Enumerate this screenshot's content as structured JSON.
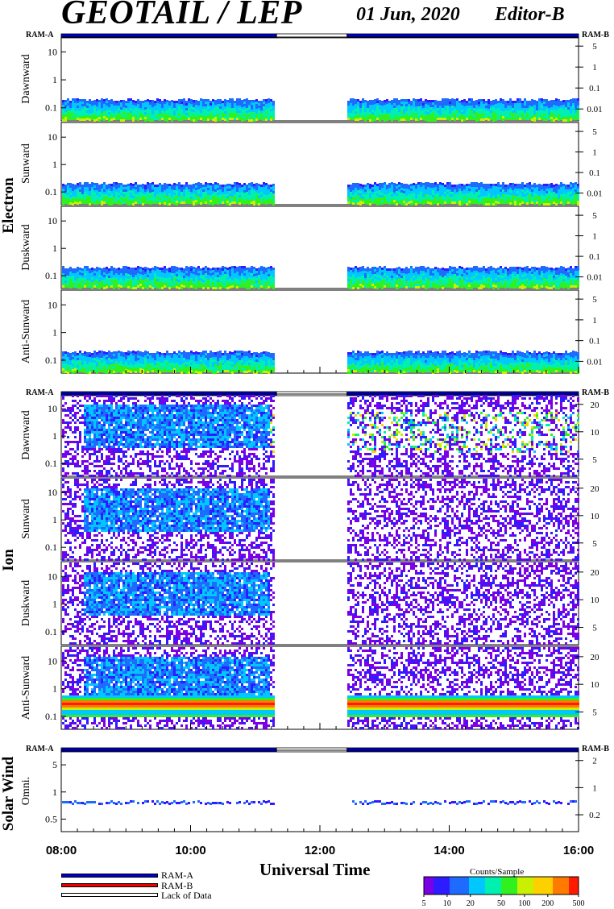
{
  "header": {
    "title": "GEOTAIL / LEP",
    "date": "01 Jun, 2020",
    "editor": "Editor-B"
  },
  "xaxis": {
    "label": "Universal Time",
    "ticks": [
      "08:00",
      "10:00",
      "12:00",
      "14:00",
      "16:00"
    ],
    "range_hours": [
      8,
      16
    ]
  },
  "ram_labels": {
    "a": "RAM-A",
    "b": "RAM-B"
  },
  "groups": [
    "Electron",
    "Ion",
    "Solar Wind"
  ],
  "legend": {
    "ram_a": "RAM-A",
    "ram_b": "RAM-B",
    "lack": "Lack of Data",
    "colors": {
      "ram_a": "#0000cc",
      "ram_b": "#ee0000",
      "lack": "#ffffff"
    }
  },
  "colorbar": {
    "title": "Counts/Sample",
    "ticks": [
      "5",
      "10",
      "20",
      "50",
      "100",
      "200",
      "500"
    ],
    "range": [
      5,
      500
    ],
    "scale": "log"
  },
  "chart_data": {
    "type": "heatmap",
    "x_range_hours": [
      8,
      16
    ],
    "data_gap_hours": [
      11.33,
      12.42
    ],
    "ram_status": [
      {
        "from": 8.0,
        "to": 11.33,
        "state": "RAM-A"
      },
      {
        "from": 11.33,
        "to": 12.42,
        "state": "Lack of Data"
      },
      {
        "from": 12.42,
        "to": 16.0,
        "state": "RAM-A"
      }
    ],
    "panels": [
      {
        "group": "Electron",
        "label": "Dawnward",
        "left_ticks": [
          "10",
          "1",
          "0.1"
        ],
        "right_ticks": [
          "5",
          "1",
          "0.1",
          "0.01"
        ],
        "yscale": "log"
      },
      {
        "group": "Electron",
        "label": "Sunward",
        "left_ticks": [
          "10",
          "1",
          "0.1"
        ],
        "right_ticks": [
          "5",
          "1",
          "0.1",
          "0.01"
        ],
        "yscale": "log"
      },
      {
        "group": "Electron",
        "label": "Duskward",
        "left_ticks": [
          "10",
          "1",
          "0.1"
        ],
        "right_ticks": [
          "5",
          "1",
          "0.1",
          "0.01"
        ],
        "yscale": "log"
      },
      {
        "group": "Electron",
        "label": "Anti-Sunward",
        "left_ticks": [
          "10",
          "1",
          "0.1"
        ],
        "right_ticks": [
          "5",
          "1",
          "0.1",
          "0.01"
        ],
        "yscale": "log"
      },
      {
        "group": "Ion",
        "label": "Dawnward",
        "left_ticks": [
          "10",
          "1",
          "0.1"
        ],
        "right_ticks": [
          "20",
          "10",
          "5"
        ],
        "yscale": "log"
      },
      {
        "group": "Ion",
        "label": "Sunward",
        "left_ticks": [
          "10",
          "1",
          "0.1"
        ],
        "right_ticks": [
          "20",
          "10",
          "5"
        ],
        "yscale": "log"
      },
      {
        "group": "Ion",
        "label": "Duskward",
        "left_ticks": [
          "10",
          "1",
          "0.1"
        ],
        "right_ticks": [
          "20",
          "10",
          "5"
        ],
        "yscale": "log"
      },
      {
        "group": "Ion",
        "label": "Anti-Sunward",
        "left_ticks": [
          "10",
          "1",
          "0.1"
        ],
        "right_ticks": [
          "20",
          "10",
          "5"
        ],
        "yscale": "log"
      },
      {
        "group": "Solar Wind",
        "label": "Omni.",
        "left_ticks": [
          "5",
          "1",
          "0.5"
        ],
        "right_ticks": [
          "2",
          "1",
          "0.2"
        ],
        "yscale": "log"
      }
    ]
  }
}
